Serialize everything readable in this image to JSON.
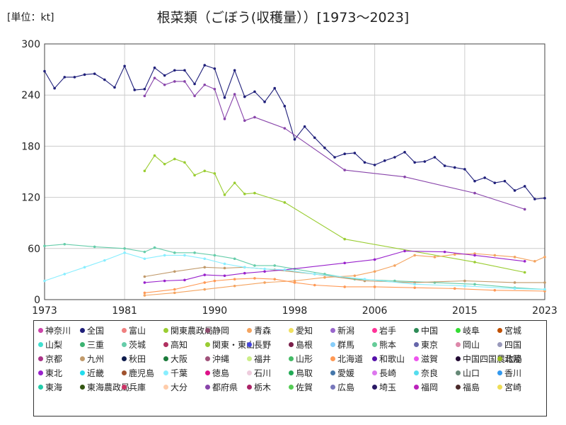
{
  "header": {
    "unit": "[単位：kt]",
    "title": "根菜類（ごぼう(収穫量））[1973～2023]"
  },
  "chart_data": {
    "type": "line",
    "title": "根菜類（ごぼう(収穫量））[1973～2023]",
    "unit": "[単位：kt]",
    "xlim": [
      1973,
      2023
    ],
    "ylim": [
      0,
      300
    ],
    "xticks": [
      1973,
      1981,
      1990,
      1998,
      2006,
      2015,
      2023
    ],
    "yticks": [
      0,
      60,
      120,
      180,
      240,
      300
    ],
    "grid": true,
    "legend_position": "bottom",
    "series": [
      {
        "name": "神奈川",
        "color": "#cc44aa",
        "x": [],
        "y": []
      },
      {
        "name": "全国",
        "color": "#1f1f7a",
        "x": [
          1973,
          1974,
          1975,
          1976,
          1977,
          1978,
          1979,
          1980,
          1981,
          1982,
          1983,
          1984,
          1985,
          1986,
          1987,
          1988,
          1989,
          1990,
          1991,
          1992,
          1993,
          1994,
          1995,
          1996,
          1997,
          1998,
          1999,
          2000,
          2001,
          2002,
          2003,
          2004,
          2005,
          2006,
          2007,
          2008,
          2009,
          2010,
          2011,
          2012,
          2013,
          2014,
          2015,
          2016,
          2017,
          2018,
          2019,
          2020,
          2021,
          2022,
          2023
        ],
        "y": [
          268,
          248,
          261,
          261,
          264,
          265,
          258,
          249,
          274,
          246,
          247,
          272,
          263,
          269,
          269,
          253,
          275,
          271,
          237,
          269,
          238,
          244,
          232,
          248,
          227,
          188,
          203,
          190,
          178,
          167,
          171,
          172,
          161,
          158,
          163,
          167,
          173,
          161,
          162,
          167,
          157,
          155,
          153,
          139,
          143,
          137,
          139,
          128,
          133,
          118,
          119
        ]
      },
      {
        "name": "富山",
        "color": "#f08080",
        "x": [],
        "y": []
      },
      {
        "name": "関東農政局",
        "color": "#9acd32",
        "x": [
          1983,
          1984,
          1985,
          1986,
          1987,
          1988,
          1989,
          1990,
          1991,
          1992,
          1993,
          1994,
          1997,
          2003,
          2016,
          2021
        ],
        "y": [
          151,
          169,
          159,
          165,
          161,
          146,
          151,
          148,
          123,
          137,
          124,
          125,
          114,
          71,
          44,
          32
        ]
      },
      {
        "name": "静岡",
        "color": "#8b4a6b",
        "x": [],
        "y": []
      },
      {
        "name": "青森",
        "color": "#f4a460",
        "x": [
          1983,
          1986,
          1989,
          1992,
          1995,
          1998,
          2001,
          2004,
          2006,
          2008,
          2010,
          2012,
          2014,
          2016,
          2018,
          2020,
          2022,
          2023
        ],
        "y": [
          5,
          8,
          12,
          16,
          20,
          22,
          26,
          28,
          33,
          40,
          52,
          50,
          53,
          54,
          52,
          50,
          45,
          50
        ]
      },
      {
        "name": "愛知",
        "color": "#f0e060",
        "x": [],
        "y": []
      },
      {
        "name": "新潟",
        "color": "#9966cc",
        "x": [],
        "y": []
      },
      {
        "name": "岩手",
        "color": "#ff3399",
        "x": [],
        "y": []
      },
      {
        "name": "中国",
        "color": "#2e8b57",
        "x": [],
        "y": []
      },
      {
        "name": "岐阜",
        "color": "#33dd33",
        "x": [],
        "y": []
      },
      {
        "name": "宮城",
        "color": "#c05000",
        "x": [],
        "y": []
      },
      {
        "name": "山梨",
        "color": "#40e0d0",
        "x": [],
        "y": []
      },
      {
        "name": "三重",
        "color": "#3cb371",
        "x": [],
        "y": []
      },
      {
        "name": "茨城",
        "color": "#66cdaa",
        "x": [
          1973,
          1975,
          1978,
          1981,
          1983,
          1984,
          1986,
          1988,
          1990,
          1992,
          1994,
          1996,
          1998,
          2001,
          2004,
          2008,
          2012,
          2016,
          2020,
          2023
        ],
        "y": [
          63,
          65,
          62,
          60,
          56,
          61,
          55,
          55,
          52,
          48,
          40,
          40,
          36,
          30,
          24,
          22,
          20,
          18,
          14,
          12
        ]
      },
      {
        "name": "高知",
        "color": "#b03060",
        "x": [],
        "y": []
      },
      {
        "name": "関東・東山",
        "color": "#99cc33",
        "x": [],
        "y": []
      },
      {
        "name": "長野",
        "color": "#4444dd",
        "x": [],
        "y": []
      },
      {
        "name": "島根",
        "color": "#7a1f4a",
        "x": [],
        "y": []
      },
      {
        "name": "群馬",
        "color": "#87cefa",
        "x": [],
        "y": []
      },
      {
        "name": "熊本",
        "color": "#66cc99",
        "x": [],
        "y": []
      },
      {
        "name": "東京",
        "color": "#6666aa",
        "x": [],
        "y": []
      },
      {
        "name": "岡山",
        "color": "#dd88aa",
        "x": [],
        "y": []
      },
      {
        "name": "四国",
        "color": "#9999bb",
        "x": [],
        "y": []
      },
      {
        "name": "京都",
        "color": "#aa3388",
        "x": [],
        "y": []
      },
      {
        "name": "九州",
        "color": "#c19a6b",
        "x": [
          1983,
          1986,
          1989,
          1991,
          1993,
          1996,
          2000,
          2005,
          2010,
          2015,
          2020,
          2023
        ],
        "y": [
          27,
          33,
          38,
          37,
          38,
          35,
          30,
          22,
          20,
          22,
          20,
          20
        ]
      },
      {
        "name": "秋田",
        "color": "#0d1b4c",
        "x": [],
        "y": []
      },
      {
        "name": "大阪",
        "color": "#1a7a3a",
        "x": [],
        "y": []
      },
      {
        "name": "沖縄",
        "color": "#a0527a",
        "x": [],
        "y": []
      },
      {
        "name": "福井",
        "color": "#ccee88",
        "x": [],
        "y": []
      },
      {
        "name": "山形",
        "color": "#44bb66",
        "x": [],
        "y": []
      },
      {
        "name": "北海道",
        "color": "#ff9955",
        "x": [
          1983,
          1986,
          1989,
          1990,
          1992,
          1994,
          1996,
          1998,
          2000,
          2003,
          2006,
          2010,
          2014,
          2018,
          2023
        ],
        "y": [
          8,
          12,
          20,
          22,
          24,
          25,
          24,
          20,
          17,
          15,
          15,
          14,
          13,
          11,
          10
        ]
      },
      {
        "name": "和歌山",
        "color": "#5511aa",
        "x": [],
        "y": []
      },
      {
        "name": "滋賀",
        "color": "#ee55ee",
        "x": [],
        "y": []
      },
      {
        "name": "中国四国農政局",
        "color": "#220a33",
        "x": [],
        "y": []
      },
      {
        "name": "北陸",
        "color": "#99bb22",
        "x": [],
        "y": []
      },
      {
        "name": "東北",
        "color": "#9922cc",
        "x": [
          1983,
          1985,
          1987,
          1989,
          1991,
          1993,
          1995,
          1997,
          2003,
          2006,
          2009,
          2013,
          2016,
          2021
        ],
        "y": [
          20,
          22,
          23,
          29,
          28,
          31,
          33,
          35,
          43,
          47,
          57,
          56,
          52,
          45
        ]
      },
      {
        "name": "近畿",
        "color": "#22ddee",
        "x": [],
        "y": []
      },
      {
        "name": "鹿児島",
        "color": "#a0522d",
        "x": [],
        "y": []
      },
      {
        "name": "千葉",
        "color": "#88eeff",
        "x": [
          1973,
          1975,
          1977,
          1979,
          1981,
          1983,
          1985,
          1987,
          1989,
          1991,
          1993,
          1995,
          1997,
          2000,
          2005,
          2010,
          2015,
          2020,
          2023
        ],
        "y": [
          22,
          30,
          38,
          46,
          55,
          48,
          52,
          52,
          48,
          42,
          38,
          36,
          35,
          30,
          24,
          18,
          16,
          13,
          12
        ]
      },
      {
        "name": "徳島",
        "color": "#dd1188",
        "x": [],
        "y": []
      },
      {
        "name": "石川",
        "color": "#eeccdd",
        "x": [],
        "y": []
      },
      {
        "name": "鳥取",
        "color": "#22aa55",
        "x": [],
        "y": []
      },
      {
        "name": "愛媛",
        "color": "#4477aa",
        "x": [],
        "y": []
      },
      {
        "name": "長崎",
        "color": "#dd77ee",
        "x": [],
        "y": []
      },
      {
        "name": "奈良",
        "color": "#55ddee",
        "x": [],
        "y": []
      },
      {
        "name": "山口",
        "color": "#668877",
        "x": [],
        "y": []
      },
      {
        "name": "香川",
        "color": "#3399ee",
        "x": [],
        "y": []
      },
      {
        "name": "東海",
        "color": "#22ccaa",
        "x": [],
        "y": []
      },
      {
        "name": "東海農政局",
        "color": "#335511",
        "x": [],
        "y": []
      },
      {
        "name": "兵庫",
        "color": "#cc3366",
        "x": [],
        "y": []
      },
      {
        "name": "大分",
        "color": "#ffccaa",
        "x": [],
        "y": []
      },
      {
        "name": "都府県",
        "color": "#8844aa",
        "x": [
          1983,
          1984,
          1985,
          1986,
          1987,
          1988,
          1989,
          1990,
          1991,
          1992,
          1993,
          1994,
          1997,
          2003,
          2009,
          2016,
          2021
        ],
        "y": [
          239,
          260,
          252,
          256,
          256,
          239,
          252,
          247,
          212,
          241,
          210,
          214,
          201,
          152,
          144,
          125,
          106
        ]
      },
      {
        "name": "栃木",
        "color": "#aa2266",
        "x": [],
        "y": []
      },
      {
        "name": "佐賀",
        "color": "#55cc55",
        "x": [],
        "y": []
      },
      {
        "name": "広島",
        "color": "#7777bb",
        "x": [],
        "y": []
      },
      {
        "name": "埼玉",
        "color": "#2a1a66",
        "x": [],
        "y": []
      },
      {
        "name": "福岡",
        "color": "#bb22bb",
        "x": [],
        "y": []
      },
      {
        "name": "福島",
        "color": "#4a2a2a",
        "x": [],
        "y": []
      },
      {
        "name": "宮崎",
        "color": "#eedd55",
        "x": [],
        "y": []
      }
    ]
  }
}
